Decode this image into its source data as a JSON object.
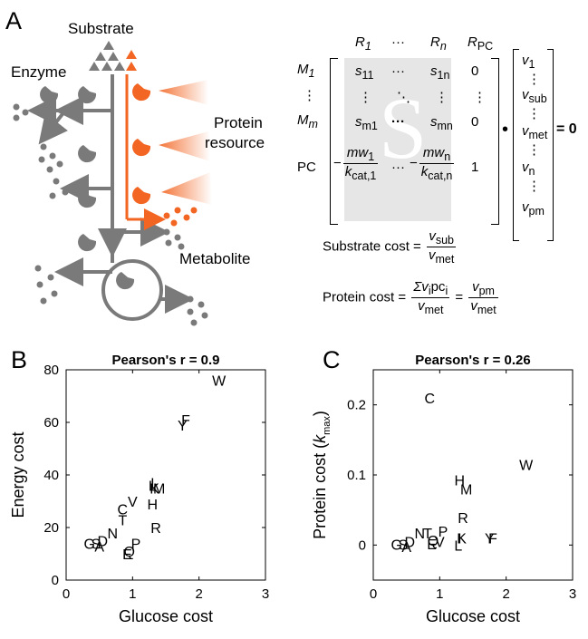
{
  "panel_a": {
    "letter": "A",
    "substrate_label": "Substrate",
    "enzyme_label": "Enzyme",
    "protein_resource_label_1": "Protein",
    "protein_resource_label_2": "resource",
    "metabolite_label": "Metabolite",
    "matrix": {
      "col_headers": [
        "R",
        "1",
        "···",
        "R",
        "n",
        "R",
        "PC"
      ],
      "row_m1": "M",
      "row_m1_sub": "1",
      "row_mm": "M",
      "row_mm_sub": "m",
      "row_pc": "PC",
      "s11": "s",
      "s11_sub": "11",
      "s1n": "s",
      "s1n_sub": "1n",
      "sm1": "s",
      "sm1_sub": "m1",
      "smn": "s",
      "smn_sub": "mn",
      "zero": "0",
      "one": "1",
      "big_s": "S",
      "mw1": "mw",
      "mw1_sub": "1",
      "kcat1": "k",
      "kcat1_sub": "cat,1",
      "mwn": "mw",
      "mwn_sub": "n",
      "kcatn": "k",
      "kcatn_sub": "cat,n",
      "dots": "···",
      "vdots": "⋮",
      "ddots": "⋱",
      "bullet": "•",
      "equals_zero": "= 0",
      "vector": [
        "v",
        "1",
        "v",
        "sub",
        "v",
        "met",
        "v",
        "n",
        "v",
        "pm"
      ]
    },
    "substrate_cost": {
      "label": "Substrate cost =",
      "num": "v",
      "num_sub": "sub",
      "den": "v",
      "den_sub": "met"
    },
    "protein_cost": {
      "label": "Protein cost =",
      "num1": "Σv",
      "num1_sub": "i",
      "num1_tail": "pc",
      "num1_tail_sub": "i",
      "den1": "v",
      "den1_sub": "met",
      "eq": "=",
      "num2": "v",
      "num2_sub": "pm",
      "den2": "v",
      "den2_sub": "met"
    }
  },
  "chart_data": [
    {
      "panel": "B",
      "type": "scatter",
      "title": "Pearson's r = 0.9",
      "xlabel": "Glucose cost",
      "ylabel": "Energy cost",
      "xlim": [
        0,
        3
      ],
      "ylim": [
        0,
        80
      ],
      "xticks": [
        "0",
        "1",
        "2",
        "3"
      ],
      "yticks": [
        "0",
        "20",
        "40",
        "60",
        "80"
      ],
      "points": [
        {
          "label": "W",
          "x": 2.3,
          "y": 76
        },
        {
          "label": "F",
          "x": 1.8,
          "y": 61
        },
        {
          "label": "Y",
          "x": 1.75,
          "y": 59
        },
        {
          "label": "I",
          "x": 1.3,
          "y": 37
        },
        {
          "label": "L",
          "x": 1.3,
          "y": 36
        },
        {
          "label": "K",
          "x": 1.33,
          "y": 35
        },
        {
          "label": "M",
          "x": 1.4,
          "y": 35
        },
        {
          "label": "H",
          "x": 1.3,
          "y": 29
        },
        {
          "label": "V",
          "x": 1.0,
          "y": 30
        },
        {
          "label": "C",
          "x": 0.85,
          "y": 27
        },
        {
          "label": "T",
          "x": 0.85,
          "y": 23
        },
        {
          "label": "R",
          "x": 1.35,
          "y": 20
        },
        {
          "label": "N",
          "x": 0.7,
          "y": 18
        },
        {
          "label": "G",
          "x": 0.35,
          "y": 14
        },
        {
          "label": "S",
          "x": 0.45,
          "y": 14
        },
        {
          "label": "D",
          "x": 0.55,
          "y": 15
        },
        {
          "label": "A",
          "x": 0.5,
          "y": 13
        },
        {
          "label": "P",
          "x": 1.05,
          "y": 14
        },
        {
          "label": "Q",
          "x": 0.95,
          "y": 11
        },
        {
          "label": "E",
          "x": 0.92,
          "y": 10
        }
      ]
    },
    {
      "panel": "C",
      "type": "scatter",
      "title": "Pearson's r = 0.26",
      "xlabel": "Glucose cost",
      "ylabel": "Protein cost (k",
      "ylabel_sub": "max",
      "ylabel_tail": ")",
      "xlim": [
        0,
        3
      ],
      "ylim": [
        -0.05,
        0.25
      ],
      "xticks": [
        "0",
        "1",
        "2",
        "3"
      ],
      "yticks": [
        "0",
        "0.1",
        "0.2"
      ],
      "points": [
        {
          "label": "C",
          "x": 0.85,
          "y": 0.21
        },
        {
          "label": "W",
          "x": 2.3,
          "y": 0.115
        },
        {
          "label": "H",
          "x": 1.3,
          "y": 0.093
        },
        {
          "label": "M",
          "x": 1.4,
          "y": 0.08
        },
        {
          "label": "R",
          "x": 1.35,
          "y": 0.039
        },
        {
          "label": "N",
          "x": 0.7,
          "y": 0.017
        },
        {
          "label": "T",
          "x": 0.82,
          "y": 0.017
        },
        {
          "label": "P",
          "x": 1.05,
          "y": 0.02
        },
        {
          "label": "I",
          "x": 1.3,
          "y": 0.01
        },
        {
          "label": "K",
          "x": 1.33,
          "y": 0.01
        },
        {
          "label": "L",
          "x": 1.28,
          "y": 0.0
        },
        {
          "label": "Y",
          "x": 1.75,
          "y": 0.01
        },
        {
          "label": "F",
          "x": 1.8,
          "y": 0.01
        },
        {
          "label": "Q",
          "x": 0.9,
          "y": 0.007
        },
        {
          "label": "V",
          "x": 1.0,
          "y": 0.005
        },
        {
          "label": "D",
          "x": 0.55,
          "y": 0.005
        },
        {
          "label": "E",
          "x": 0.88,
          "y": 0.002
        },
        {
          "label": "G",
          "x": 0.35,
          "y": 0.001
        },
        {
          "label": "S",
          "x": 0.45,
          "y": 0.001
        },
        {
          "label": "A",
          "x": 0.5,
          "y": -0.002
        }
      ]
    }
  ]
}
